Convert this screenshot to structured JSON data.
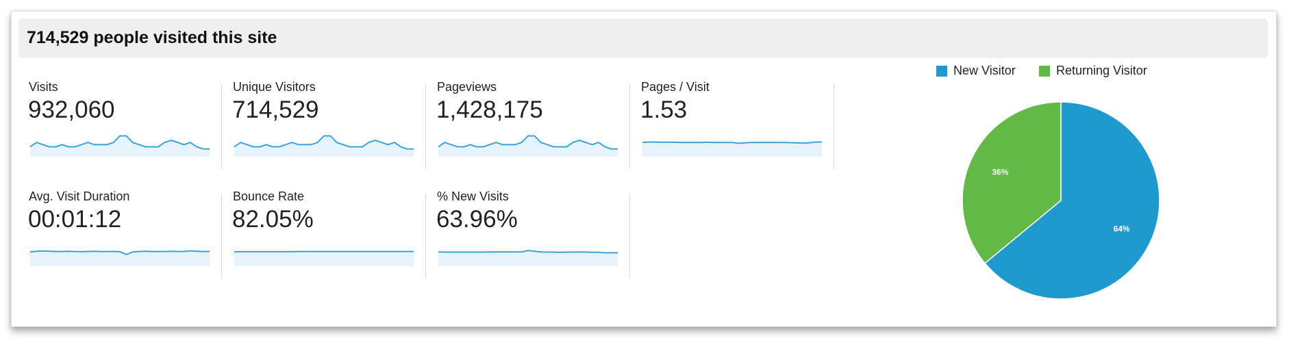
{
  "header": {
    "title": "714,529 people visited this site"
  },
  "metrics": [
    {
      "label": "Visits",
      "value": "932,060",
      "spark": [
        6,
        8,
        7,
        6,
        6,
        7,
        6,
        6,
        7,
        8,
        7,
        7,
        7,
        8,
        11,
        11,
        8,
        7,
        6,
        6,
        6,
        8,
        9,
        8,
        7,
        8,
        6,
        5,
        5
      ]
    },
    {
      "label": "Unique Visitors",
      "value": "714,529",
      "spark": [
        6,
        8,
        7,
        6,
        6,
        7,
        6,
        6,
        7,
        8,
        7,
        7,
        7,
        8,
        11,
        11,
        8,
        7,
        6,
        6,
        6,
        8,
        9,
        8,
        7,
        8,
        6,
        5,
        5
      ]
    },
    {
      "label": "Pageviews",
      "value": "1,428,175",
      "spark": [
        6,
        8,
        7,
        6,
        6,
        7,
        6,
        6,
        7,
        8,
        7,
        7,
        7,
        8,
        11,
        11,
        8,
        7,
        6,
        6,
        6,
        8,
        9,
        8,
        7,
        8,
        6,
        5,
        5
      ]
    },
    {
      "label": "Pages / Visit",
      "value": "1.53",
      "spark": [
        8,
        8.2,
        8.2,
        8.1,
        8.1,
        8.1,
        8,
        8,
        8,
        8,
        8.1,
        8,
        8,
        8,
        8,
        7.6,
        7.8,
        8,
        8,
        8,
        8,
        8,
        8,
        7.9,
        7.8,
        7.7,
        7.8,
        8.2,
        8.2
      ]
    },
    {
      "label": "Avg. Visit Duration",
      "value": "00:01:12",
      "spark": [
        8,
        8.3,
        8.4,
        8.3,
        8.2,
        8.2,
        8.3,
        8.2,
        8.1,
        8.2,
        8.3,
        8.2,
        8.2,
        8.2,
        8.1,
        6.8,
        8,
        8.2,
        8.3,
        8.2,
        8.2,
        8.2,
        8.3,
        8.2,
        8.2,
        8.5,
        8.3,
        8.2,
        8.2
      ]
    },
    {
      "label": "Bounce Rate",
      "value": "82.05%",
      "spark": [
        8,
        8.1,
        8.1,
        8.1,
        8.1,
        8.1,
        8.1,
        8.1,
        8.1,
        8.1,
        8.2,
        8.2,
        8.2,
        8.2,
        8.2,
        8.2,
        8.2,
        8.2,
        8.2,
        8.2,
        8.2,
        8.2,
        8.2,
        8.2,
        8.2,
        8.2,
        8.2,
        8.2,
        8.2
      ]
    },
    {
      "label": "% New Visits",
      "value": "63.96%",
      "spark": [
        8,
        7.9,
        7.9,
        7.9,
        7.9,
        7.9,
        7.9,
        7.9,
        8,
        8,
        8,
        8,
        8,
        8,
        8.6,
        8.3,
        8,
        7.9,
        7.9,
        7.8,
        7.9,
        7.9,
        8,
        7.9,
        7.8,
        7.8,
        7.6,
        7.6,
        7.6
      ]
    }
  ],
  "chart_data": {
    "type": "pie",
    "legend_position": "top",
    "slices": [
      {
        "name": "New Visitor",
        "value": 64,
        "label": "64%",
        "color": "#1f9acf"
      },
      {
        "name": "Returning Visitor",
        "value": 36,
        "label": "36%",
        "color": "#62b946"
      }
    ]
  },
  "colors": {
    "spark_line": "#3aa3d4",
    "spark_fill": "#e6f3fb"
  }
}
